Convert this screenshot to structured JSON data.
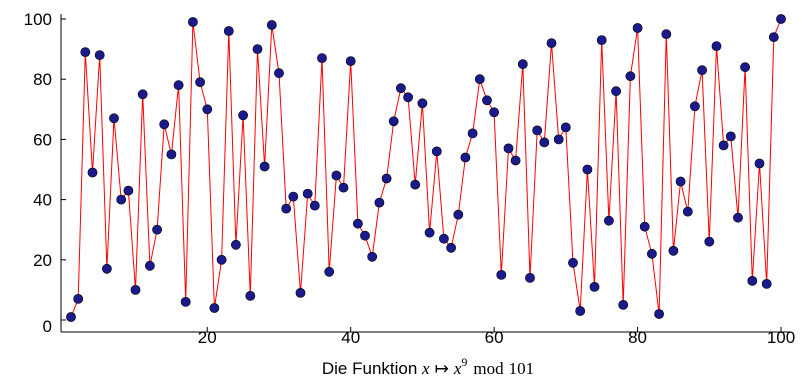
{
  "chart_data": {
    "type": "line",
    "title": "",
    "xlabel": {
      "prefix": "Die Funktion ",
      "var": "x",
      "arrow": "↦",
      "var2": "x",
      "exp": "9",
      "op": "mod",
      "modulus": "101"
    },
    "ylabel": "",
    "xlim": [
      1,
      100
    ],
    "ylim": [
      0,
      100
    ],
    "x_ticks": [
      20,
      40,
      60,
      80,
      100
    ],
    "y_ticks": [
      0,
      20,
      40,
      60,
      80,
      100
    ],
    "grid": false,
    "series": [
      {
        "line_color": "#ff0000",
        "marker_color": "#1a1a8c",
        "x": [
          1,
          2,
          3,
          4,
          5,
          6,
          7,
          8,
          9,
          10,
          11,
          12,
          13,
          14,
          15,
          16,
          17,
          18,
          19,
          20,
          21,
          22,
          23,
          24,
          25,
          26,
          27,
          28,
          29,
          30,
          31,
          32,
          33,
          34,
          35,
          36,
          37,
          38,
          39,
          40,
          41,
          42,
          43,
          44,
          45,
          46,
          47,
          48,
          49,
          50,
          51,
          52,
          53,
          54,
          55,
          56,
          57,
          58,
          59,
          60,
          61,
          62,
          63,
          64,
          65,
          66,
          67,
          68,
          69,
          70,
          71,
          72,
          73,
          74,
          75,
          76,
          77,
          78,
          79,
          80,
          81,
          82,
          83,
          84,
          85,
          86,
          87,
          88,
          89,
          90,
          91,
          92,
          93,
          94,
          95,
          96,
          97,
          98,
          99,
          100
        ],
        "y": [
          1,
          7,
          89,
          49,
          88,
          17,
          67,
          40,
          43,
          10,
          75,
          18,
          30,
          65,
          55,
          78,
          6,
          99,
          79,
          70,
          4,
          20,
          96,
          25,
          68,
          8,
          90,
          51,
          98,
          82,
          37,
          41,
          9,
          42,
          38,
          87,
          16,
          48,
          44,
          86,
          32,
          28,
          21,
          39,
          47,
          66,
          77,
          74,
          45,
          72,
          29,
          56,
          27,
          24,
          35,
          54,
          62,
          80,
          73,
          69,
          15,
          57,
          53,
          85,
          14,
          63,
          59,
          92,
          60,
          64,
          19,
          3,
          50,
          11,
          93,
          33,
          76,
          5,
          81,
          97,
          31,
          22,
          2,
          95,
          23,
          46,
          36,
          71,
          83,
          26,
          91,
          58,
          61,
          34,
          84,
          13,
          52,
          12,
          94,
          100
        ]
      }
    ]
  }
}
